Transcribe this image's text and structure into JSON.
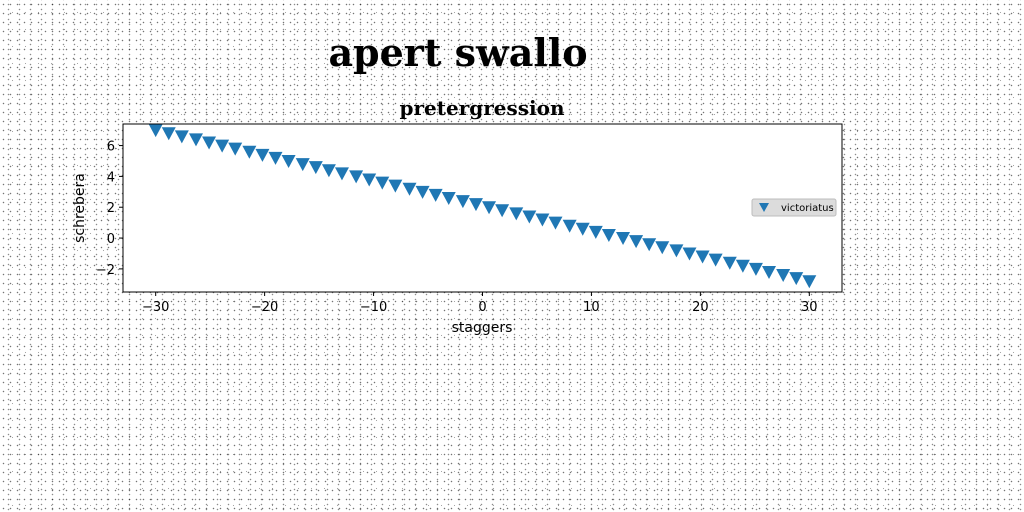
{
  "figure": {
    "suptitle": "apert swallo"
  },
  "chart_data": {
    "type": "scatter",
    "title": "pretergression",
    "xlabel": "staggers",
    "ylabel": "schrebera",
    "xlim": [
      -33,
      33
    ],
    "ylim": [
      -3.5,
      7.4
    ],
    "xticks": [
      -30,
      -20,
      -10,
      0,
      10,
      20,
      30
    ],
    "xtick_labels": [
      "−30",
      "−20",
      "−10",
      "0",
      "10",
      "20",
      "30"
    ],
    "yticks": [
      -2,
      0,
      2,
      4,
      6
    ],
    "ytick_labels": [
      "−2",
      "0",
      "2",
      "4",
      "6"
    ],
    "grid": false,
    "legend_position": "center-right",
    "marker": "triangle-down",
    "colors": {
      "series": "#1f77b4"
    },
    "series": [
      {
        "name": "victoriatus",
        "x": [
          -30,
          -28.8,
          -27.6,
          -26.3,
          -25.1,
          -23.9,
          -22.7,
          -21.4,
          -20.2,
          -19,
          -17.8,
          -16.5,
          -15.3,
          -14.1,
          -12.9,
          -11.6,
          -10.4,
          -9.2,
          -8,
          -6.7,
          -5.5,
          -4.3,
          -3.1,
          -1.8,
          -0.6,
          0.6,
          1.8,
          3.1,
          4.3,
          5.5,
          6.7,
          8,
          9.2,
          10.4,
          11.6,
          12.9,
          14.1,
          15.3,
          16.5,
          17.8,
          19,
          20.2,
          21.4,
          22.7,
          23.9,
          25.1,
          26.3,
          27.6,
          28.8,
          30
        ],
        "y": [
          7,
          6.8,
          6.6,
          6.4,
          6.2,
          6,
          5.8,
          5.6,
          5.4,
          5.2,
          5,
          4.8,
          4.6,
          4.4,
          4.2,
          4,
          3.8,
          3.6,
          3.4,
          3.2,
          3,
          2.8,
          2.6,
          2.4,
          2.2,
          2,
          1.8,
          1.6,
          1.4,
          1.2,
          1,
          0.8,
          0.6,
          0.4,
          0.2,
          0,
          -0.2,
          -0.4,
          -0.6,
          -0.8,
          -1,
          -1.2,
          -1.4,
          -1.6,
          -1.8,
          -2,
          -2.2,
          -2.4,
          -2.6,
          -2.8
        ]
      }
    ]
  }
}
